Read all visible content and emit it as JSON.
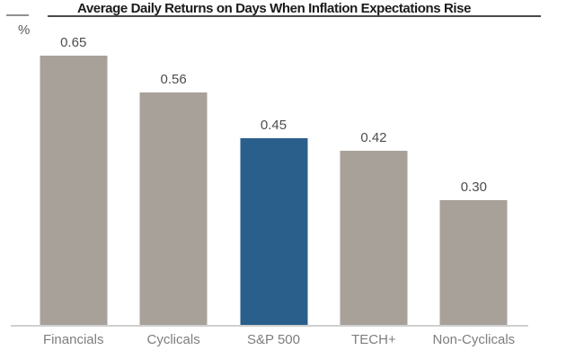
{
  "chart_data": {
    "type": "bar",
    "title": "Average Daily Returns on Days When Inflation Expectations Rise",
    "unit_label": "%",
    "categories": [
      "Financials",
      "Cyclicals",
      "S&P 500",
      "TECH+",
      "Non-Cyclicals"
    ],
    "values": [
      0.65,
      0.56,
      0.45,
      0.42,
      0.3
    ],
    "value_labels": [
      "0.65",
      "0.56",
      "0.45",
      "0.42",
      "0.30"
    ],
    "highlight_category": "S&P 500",
    "highlight_index": 2,
    "ylim": [
      0,
      0.72
    ],
    "grid": false,
    "legend": "none",
    "colors": {
      "bar": "#a8a19a",
      "highlight": "#2a5f8b",
      "axis": "#d0d0d0",
      "value_text": "#4d4d4d",
      "category_text": "#7e7e7e",
      "title_text": "#1b1b1b",
      "title_rule": "#4a4a4a"
    }
  }
}
